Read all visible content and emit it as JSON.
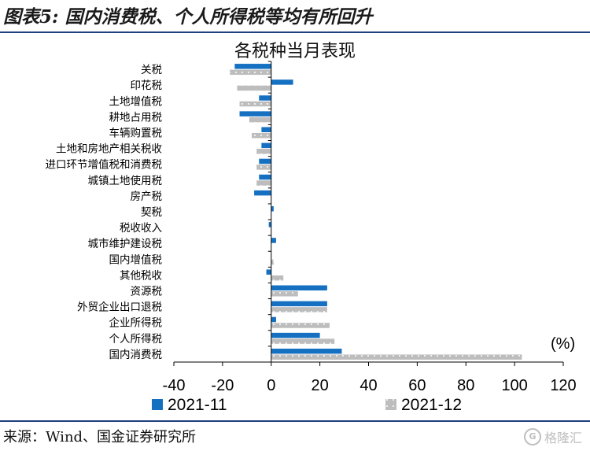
{
  "figure_title": "图表5:  国内消费税、个人所得税等均有所回升",
  "source_text": "来源：Wind、国金证券研究所",
  "watermark_text": "格隆汇",
  "colors": {
    "series1": "#1570c2",
    "series2": "#bdbdbd",
    "rule": "#1f3f7f"
  },
  "chart_data": {
    "type": "bar",
    "orientation": "horizontal",
    "title": "各税种当月表现",
    "unit_label": "(%)",
    "categories": [
      "关税",
      "印花税",
      "土地增值税",
      "耕地占用税",
      "车辆购置税",
      "土地和房地产相关税收",
      "进口环节增值税和消费税",
      "城镇土地使用税",
      "房产税",
      "契税",
      "税收收入",
      "城市维护建设税",
      "国内增值税",
      "其他税收",
      "资源税",
      "外贸企业出口退税",
      "企业所得税",
      "个人所得税",
      "国内消费税"
    ],
    "series": [
      {
        "name": "2021-11",
        "values": [
          -15,
          9,
          -5,
          -13,
          -4,
          -4,
          -5,
          -5,
          -7,
          1,
          -1,
          2,
          0,
          -2,
          23,
          23,
          2,
          20,
          29
        ]
      },
      {
        "name": "2021-12",
        "values": [
          -17,
          -14,
          -13,
          -9,
          -8,
          -6,
          -6,
          -6,
          0,
          0,
          0,
          0,
          1,
          5,
          11,
          23,
          24,
          26,
          103
        ]
      }
    ],
    "xlim": [
      -40,
      120
    ],
    "xticks": [
      "-40",
      "-20",
      "0",
      "20",
      "40",
      "60",
      "80",
      "100",
      "120"
    ],
    "legend_position": "bottom"
  }
}
